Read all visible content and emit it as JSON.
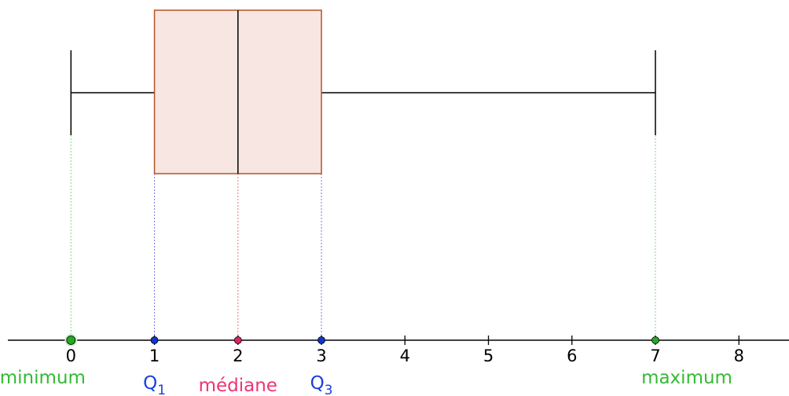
{
  "chart_data": {
    "type": "boxplot",
    "title": "",
    "xlabel": "",
    "ylabel": "",
    "x_range": [
      -0.85,
      8.6
    ],
    "ticks": [
      0,
      1,
      2,
      3,
      4,
      5,
      6,
      7,
      8
    ],
    "tick_labels": [
      "0",
      "1",
      "2",
      "3",
      "4",
      "5",
      "6",
      "7",
      "8"
    ],
    "box": {
      "min": 0,
      "q1": 1,
      "median": 2,
      "q3": 3,
      "max": 7
    },
    "annotations": {
      "min": {
        "text": "minimum",
        "sub": ""
      },
      "q1": {
        "text": "Q",
        "sub": "1"
      },
      "median": {
        "text": "médiane",
        "sub": ""
      },
      "q3": {
        "text": "Q",
        "sub": "3"
      },
      "max": {
        "text": "maximum",
        "sub": ""
      }
    },
    "colors": {
      "box_stroke": "#b5542a",
      "box_fill": "#f7e6e1",
      "whisker": "#000000",
      "axis": "#000000",
      "extreme": "#22aa22",
      "extreme_label": "#33bb33",
      "quartile": "#1133cc",
      "quartile_label": "#1a3ee0",
      "median": "#dd2266",
      "median_label": "#ee3377",
      "guide_extreme": "#77dd77",
      "guide_quartile": "#7777ee",
      "guide_median": "#ee7777"
    }
  }
}
